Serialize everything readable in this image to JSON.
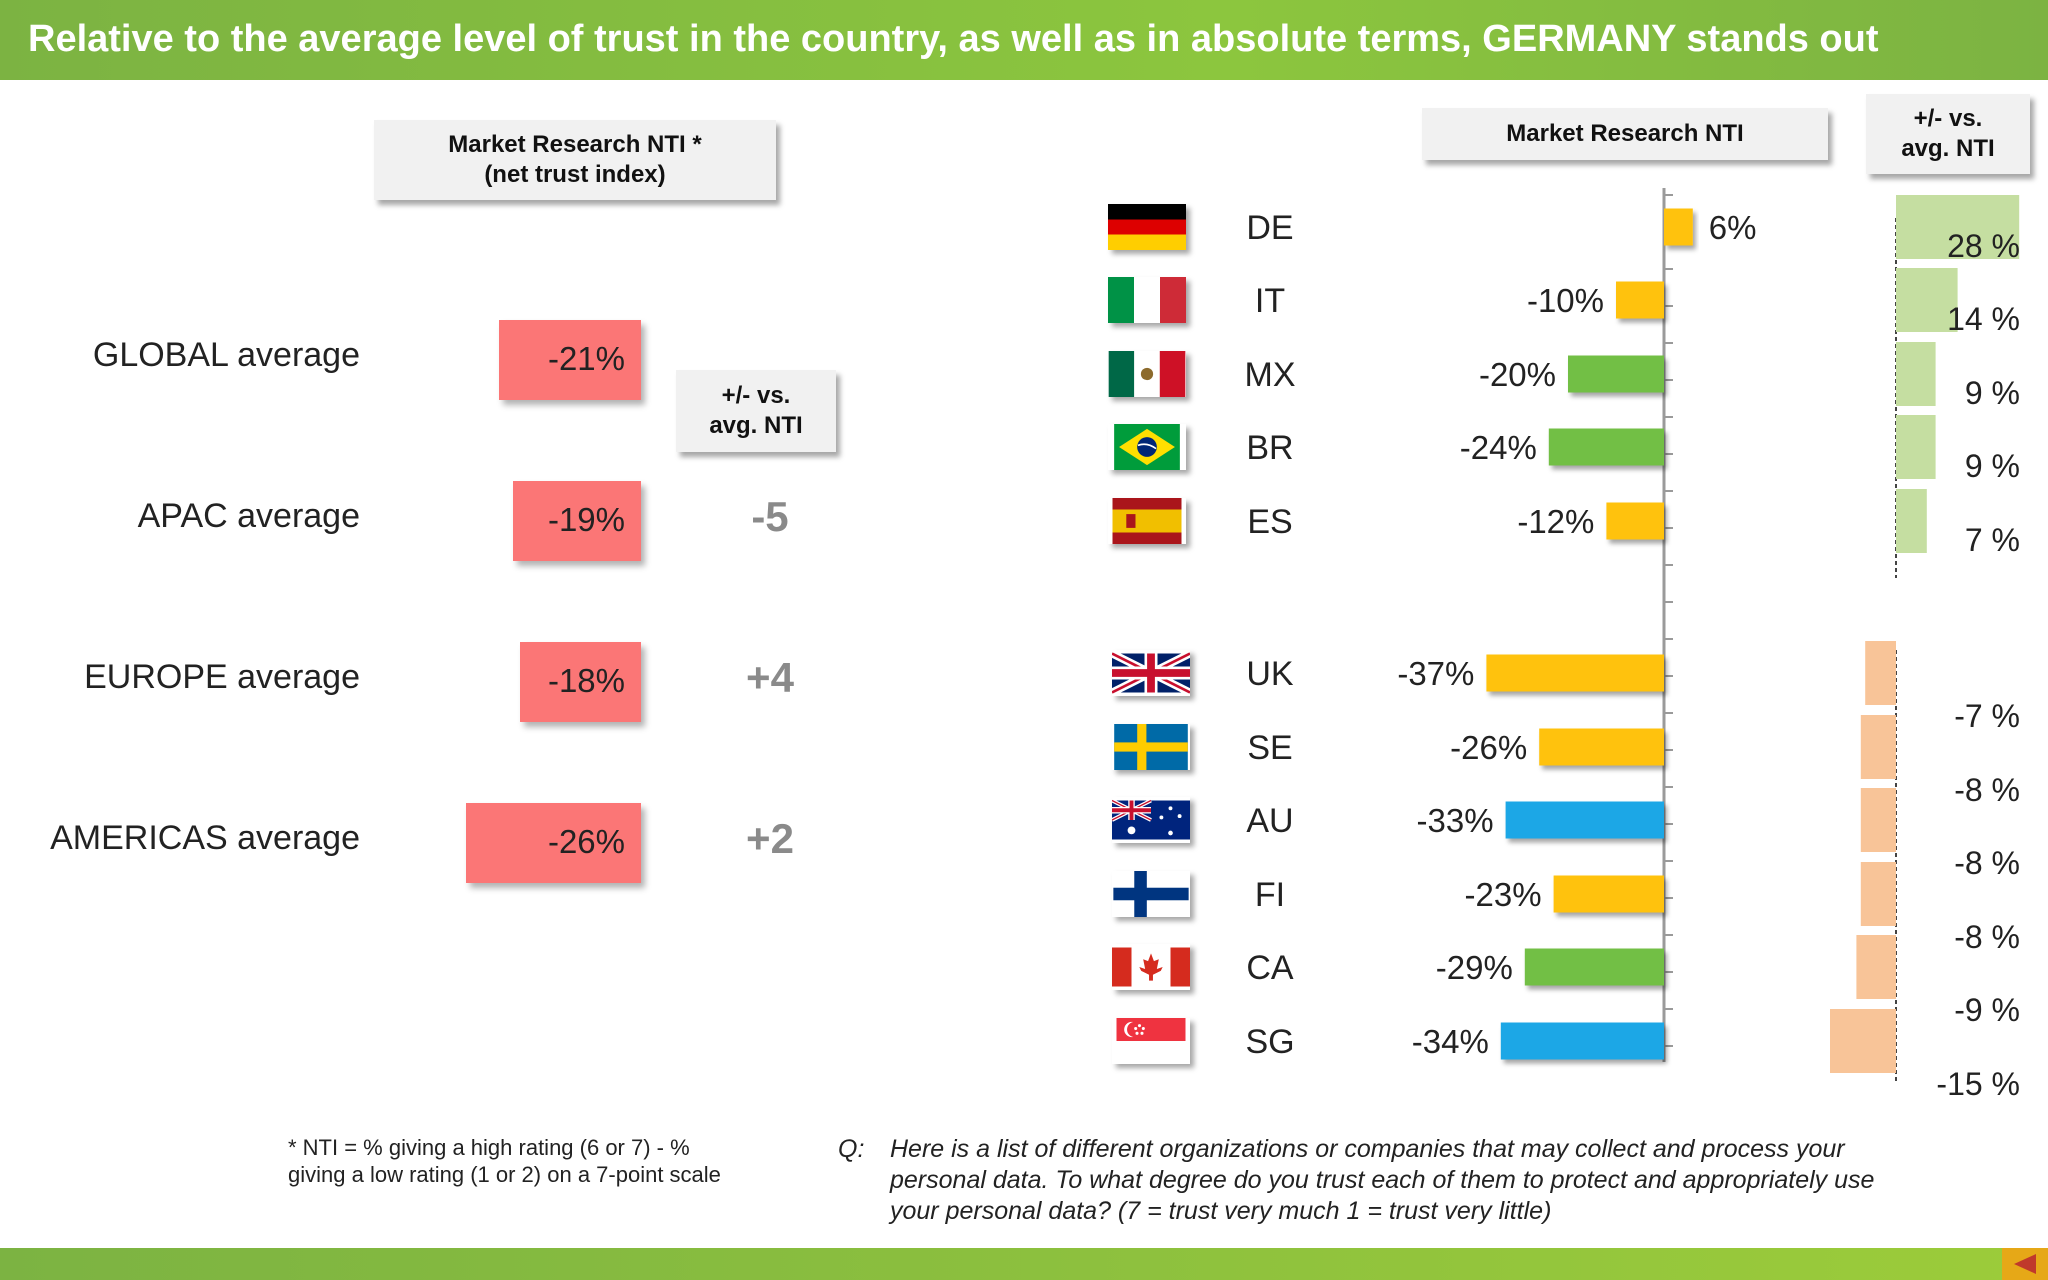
{
  "title": "Relative to the average level of trust in the country, as well as in absolute terms, GERMANY stands out",
  "left_panel": {
    "header": "Market Research NTI *\n(net trust index)",
    "diff_header": "+/- vs.\navg. NTI"
  },
  "right_panel": {
    "header": "Market Research NTI",
    "diff_header": "+/- vs.\navg. NTI"
  },
  "colors": {
    "title_bar": "#7cb342",
    "average_bar": "#fb7676",
    "europe": "#ffc20e",
    "americas": "#72bf44",
    "apac": "#1ba7e6",
    "diff_positive": "#c5dea1",
    "diff_negative": "#f8c498",
    "diff_text": "#8a8a8a"
  },
  "chart_data": [
    {
      "type": "bar",
      "categories": [
        "GLOBAL average",
        "APAC average",
        "EUROPE average",
        "AMERICAS average"
      ],
      "values": [
        -21,
        -19,
        -18,
        -26
      ],
      "value_labels": [
        "-21%",
        "-19%",
        "-18%",
        "-26%"
      ],
      "diff_values": [
        "",
        "-5",
        "+4",
        "+2"
      ]
    },
    {
      "type": "bar",
      "orientation": "horizontal",
      "categories": [
        "DE",
        "IT",
        "MX",
        "BR",
        "ES",
        "UK",
        "SE",
        "AU",
        "FI",
        "CA",
        "SG"
      ],
      "values": [
        6,
        -10,
        -20,
        -24,
        -12,
        -37,
        -26,
        -33,
        -23,
        -29,
        -34
      ],
      "value_labels": [
        "6%",
        "-10%",
        "-20%",
        "-24%",
        "-12%",
        "-37%",
        "-26%",
        "-33%",
        "-23%",
        "-29%",
        "-34%"
      ],
      "regions": [
        "europe",
        "europe",
        "americas",
        "americas",
        "europe",
        "europe",
        "europe",
        "apac",
        "europe",
        "americas",
        "apac"
      ]
    },
    {
      "type": "bar",
      "orientation": "horizontal",
      "categories": [
        "DE",
        "IT",
        "MX",
        "BR",
        "ES",
        "UK",
        "SE",
        "AU",
        "FI",
        "CA",
        "SG"
      ],
      "values": [
        28,
        14,
        9,
        9,
        7,
        -7,
        -8,
        -8,
        -8,
        -9,
        -15
      ],
      "value_labels": [
        "28 %",
        "14 %",
        "9 %",
        "9 %",
        "7 %",
        "-7 %",
        "-8 %",
        "-8 %",
        "-8 %",
        "-9 %",
        "-15 %"
      ]
    }
  ],
  "icons": {
    "flags": [
      "germany-flag-icon",
      "italy-flag-icon",
      "mexico-flag-icon",
      "brazil-flag-icon",
      "spain-flag-icon",
      "uk-flag-icon",
      "sweden-flag-icon",
      "australia-flag-icon",
      "finland-flag-icon",
      "canada-flag-icon",
      "singapore-flag-icon"
    ]
  },
  "footnote": "* NTI = % giving a high rating (6 or 7) - % giving a low rating (1 or 2) on a 7-point scale",
  "question_prefix": "Q:",
  "question": "Here is a list of different organizations or companies that may collect and process your personal data.  To what degree do you trust each of them to protect and appropriately use your personal data? (7 = trust very much 1 = trust very little)"
}
